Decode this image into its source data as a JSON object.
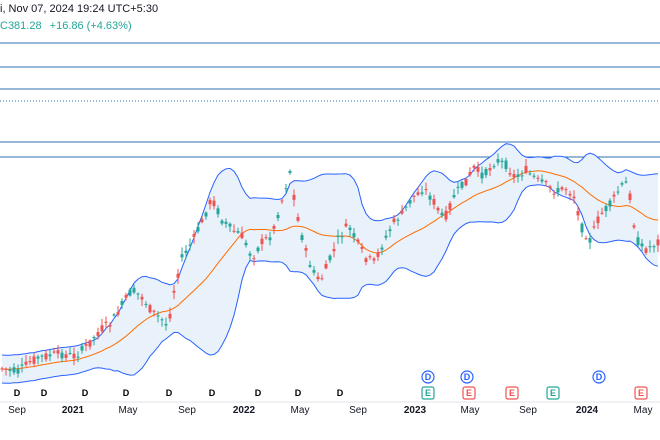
{
  "header": {
    "datetime_text": "i, Nov 07, 2024 19:24 UTC+5:30",
    "price_text": "C381.28",
    "change_text": "+16.86 (+4.63%)"
  },
  "colors": {
    "up": "#26a69a",
    "down": "#ef5350",
    "band": "#2962ff",
    "band_fill": "#e9f1fb",
    "basis": "#ff6d00",
    "hline": "#2f6fb0",
    "dividend_marker": "#2962ff",
    "earnings_up": "#26a69a",
    "earnings_down": "#ef5350",
    "grid": "#e0e3eb"
  },
  "x_axis": {
    "labels": [
      "Sep",
      "2021",
      "May",
      "Sep",
      "2022",
      "May",
      "Sep",
      "2023",
      "May",
      "Sep",
      "2024",
      "May"
    ],
    "bold": [
      false,
      true,
      false,
      false,
      true,
      false,
      false,
      true,
      false,
      false,
      true,
      false
    ]
  },
  "horizontal_levels": [
    {
      "style": "solid"
    },
    {
      "style": "solid"
    },
    {
      "style": "solid"
    },
    {
      "style": "dotted"
    },
    {
      "style": "solid"
    },
    {
      "style": "solid"
    }
  ],
  "event_markers": {
    "row1_icon": "dividend-icon",
    "row1_letters": [
      "D",
      "D",
      "D",
      "D",
      "D",
      "D",
      "D",
      "D",
      "D",
      "E",
      "E",
      "E",
      "E",
      "E"
    ],
    "row1_colors": [
      "dividend",
      "dividend",
      "dividend",
      "dividend",
      "dividend",
      "dividend",
      "dividend",
      "dividend",
      "dividend",
      "earnings_up",
      "earnings_down",
      "earnings_down",
      "earnings_up",
      "earnings_down"
    ],
    "row2_letters": [
      "D",
      "D",
      "D"
    ],
    "row2_icon": "dividend-icon"
  },
  "chart_data": {
    "type": "candlestick",
    "title": "",
    "indicators": [
      "Bollinger Bands upper",
      "Bollinger Bands basis",
      "Bollinger Bands lower"
    ],
    "price_waypoints": [
      [
        0,
        368
      ],
      [
        18,
        372
      ],
      [
        32,
        360
      ],
      [
        45,
        356
      ],
      [
        60,
        354
      ],
      [
        75,
        356
      ],
      [
        88,
        345
      ],
      [
        100,
        330
      ],
      [
        112,
        322
      ],
      [
        122,
        305
      ],
      [
        132,
        290
      ],
      [
        143,
        298
      ],
      [
        152,
        312
      ],
      [
        160,
        318
      ],
      [
        168,
        326
      ],
      [
        175,
        285
      ],
      [
        182,
        258
      ],
      [
        192,
        242
      ],
      [
        202,
        222
      ],
      [
        212,
        198
      ],
      [
        222,
        220
      ],
      [
        232,
        230
      ],
      [
        242,
        236
      ],
      [
        252,
        258
      ],
      [
        262,
        242
      ],
      [
        272,
        235
      ],
      [
        282,
        200
      ],
      [
        290,
        172
      ],
      [
        296,
        208
      ],
      [
        304,
        246
      ],
      [
        312,
        270
      ],
      [
        320,
        282
      ],
      [
        328,
        264
      ],
      [
        338,
        240
      ],
      [
        348,
        225
      ],
      [
        358,
        244
      ],
      [
        366,
        258
      ],
      [
        374,
        262
      ],
      [
        384,
        242
      ],
      [
        394,
        222
      ],
      [
        404,
        212
      ],
      [
        412,
        198
      ],
      [
        424,
        188
      ],
      [
        434,
        202
      ],
      [
        444,
        220
      ],
      [
        454,
        196
      ],
      [
        464,
        184
      ],
      [
        474,
        168
      ],
      [
        484,
        176
      ],
      [
        496,
        160
      ],
      [
        506,
        165
      ],
      [
        516,
        178
      ],
      [
        526,
        170
      ],
      [
        536,
        180
      ],
      [
        546,
        185
      ],
      [
        556,
        192
      ],
      [
        566,
        188
      ],
      [
        574,
        196
      ],
      [
        582,
        228
      ],
      [
        590,
        240
      ],
      [
        600,
        215
      ],
      [
        610,
        205
      ],
      [
        620,
        188
      ],
      [
        628,
        182
      ],
      [
        636,
        238
      ],
      [
        644,
        250
      ],
      [
        652,
        246
      ],
      [
        660,
        240
      ]
    ]
  }
}
